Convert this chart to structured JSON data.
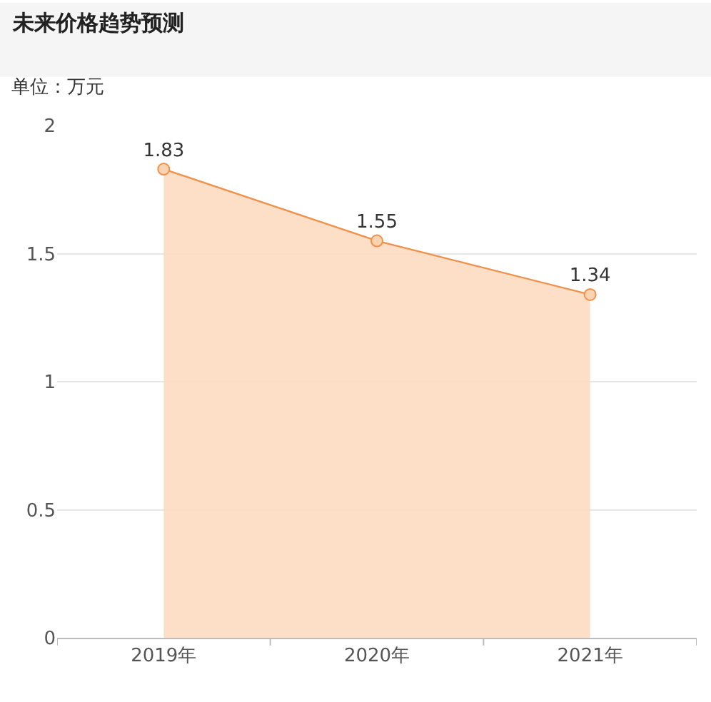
{
  "chart_data": {
    "type": "area",
    "title": "未来价格趋势预测",
    "subtitle": "单位：万元",
    "categories": [
      "2019年",
      "2020年",
      "2021年"
    ],
    "series": [
      {
        "color": "#f0914a",
        "values": [
          1.83,
          1.55,
          1.34
        ]
      }
    ],
    "ylim": [
      0,
      2
    ],
    "yticks": [
      0,
      0.5,
      1,
      1.5,
      2
    ],
    "grid": "y",
    "data_labels": true,
    "marker": "circle",
    "line_style": "solid",
    "legend": false
  }
}
